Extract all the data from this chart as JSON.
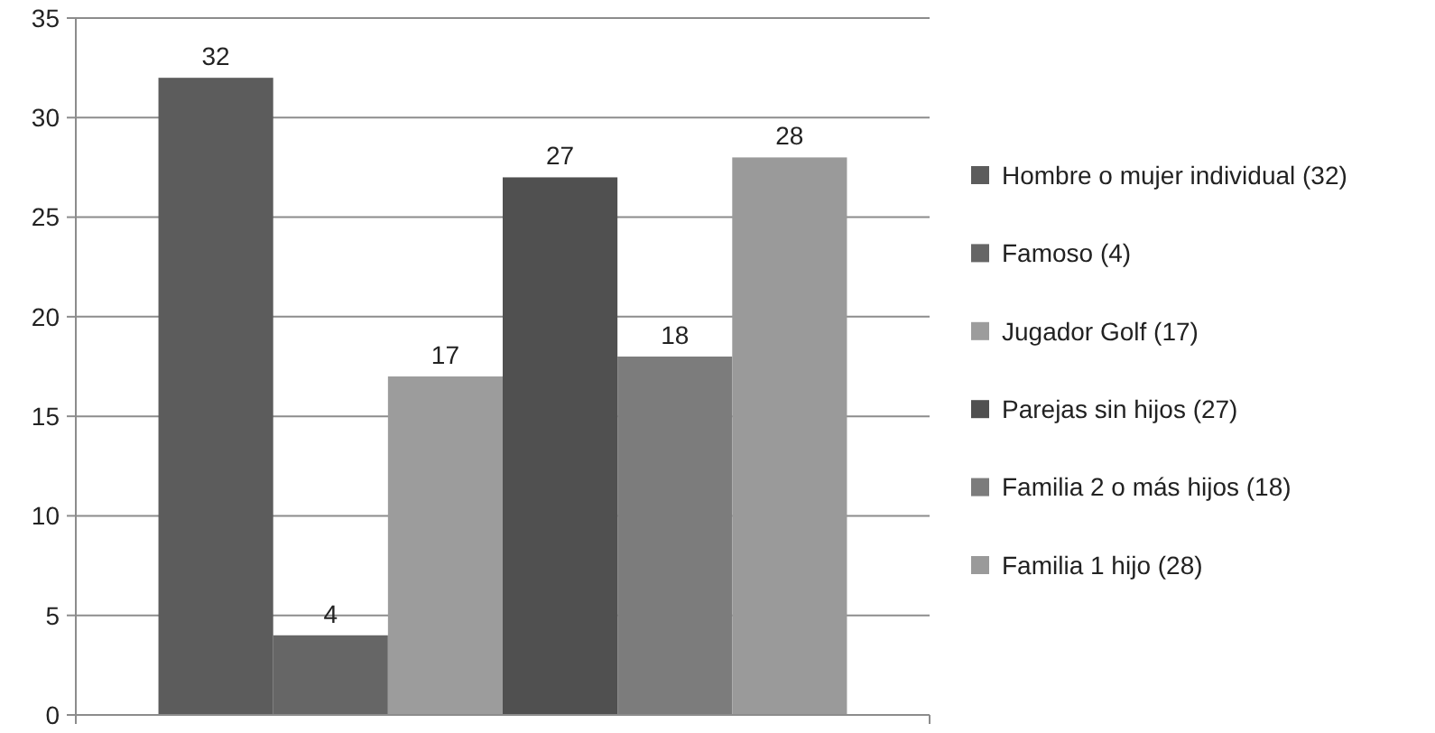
{
  "chart_data": {
    "type": "bar",
    "categories": [
      null
    ],
    "series": [
      {
        "name": "Hombre o mujer individual (32)",
        "color": "#5c5c5c",
        "values": [
          32
        ]
      },
      {
        "name": "Famoso (4)",
        "color": "#666666",
        "values": [
          4
        ]
      },
      {
        "name": "Jugador Golf (17)",
        "color": "#9c9c9c",
        "values": [
          17
        ]
      },
      {
        "name": "Parejas sin hijos (27)",
        "color": "#505050",
        "values": [
          27
        ]
      },
      {
        "name": "Familia 2 o más hijos (18)",
        "color": "#7c7c7c",
        "values": [
          18
        ]
      },
      {
        "name": "Familia 1 hijo (28)",
        "color": "#9a9a9a",
        "values": [
          28
        ]
      }
    ],
    "ylim": [
      0,
      35
    ],
    "yticks": [
      0,
      5,
      10,
      15,
      20,
      25,
      30,
      35
    ],
    "grid": "y",
    "legend": "right",
    "data_labels": true
  }
}
